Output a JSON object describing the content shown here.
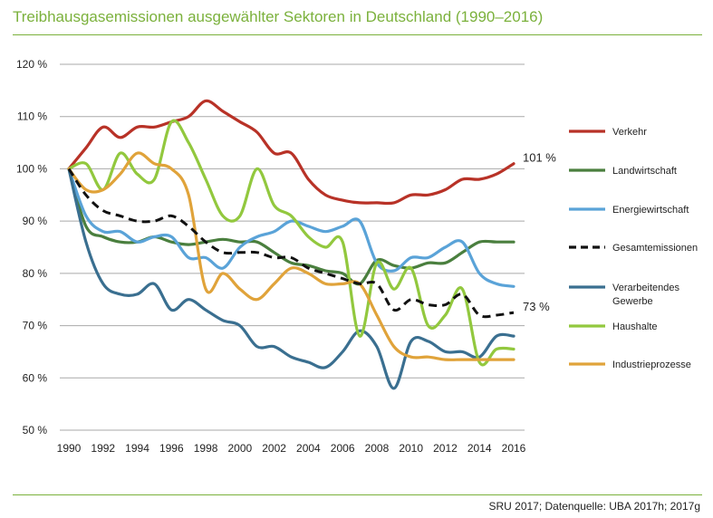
{
  "title": "Treibhausgasemissionen ausgewählter Sektoren in Deutschland (1990–2016)",
  "source": "SRU 2017; Datenquelle: UBA 2017h; 2017g",
  "chart_data": {
    "type": "line",
    "title": "Treibhausgasemissionen ausgewählter Sektoren in Deutschland (1990–2016)",
    "xlabel": "",
    "ylabel": "",
    "x": [
      1990,
      1991,
      1992,
      1993,
      1994,
      1995,
      1996,
      1997,
      1998,
      1999,
      2000,
      2001,
      2002,
      2003,
      2004,
      2005,
      2006,
      2007,
      2008,
      2009,
      2010,
      2011,
      2012,
      2013,
      2014,
      2015,
      2016
    ],
    "xticks": [
      "1990",
      "1992",
      "1994",
      "1996",
      "1998",
      "2000",
      "2002",
      "2004",
      "2006",
      "2008",
      "2010",
      "2012",
      "2014",
      "2016"
    ],
    "yticks": [
      "50 %",
      "60 %",
      "70 %",
      "80 %",
      "90 %",
      "100 %",
      "110 %",
      "120 %"
    ],
    "yticks_values": [
      50,
      60,
      70,
      80,
      90,
      100,
      110,
      120
    ],
    "ylim": [
      50,
      120
    ],
    "xlim": [
      1990,
      2016
    ],
    "grid": true,
    "legend_position": "right",
    "series": [
      {
        "name": "Verkehr",
        "color": "#b83227",
        "dashed": false,
        "values": [
          100,
          104,
          108,
          106,
          108,
          108,
          109,
          110,
          113,
          111,
          109,
          107,
          103,
          103,
          98,
          95,
          94,
          93.5,
          93.5,
          93.5,
          95,
          95,
          96,
          98,
          98,
          99,
          101
        ]
      },
      {
        "name": "Landwirtschaft",
        "color": "#4a7f3e",
        "dashed": false,
        "values": [
          100,
          89,
          87,
          86,
          86,
          87,
          86,
          85.5,
          86,
          86.5,
          86,
          86,
          84,
          82,
          81.5,
          80.5,
          80,
          78,
          82.5,
          81.5,
          81,
          82,
          82,
          84,
          86,
          86,
          86
        ]
      },
      {
        "name": "Energiewirtschaft",
        "color": "#5aa3d8",
        "dashed": false,
        "values": [
          100,
          91,
          88,
          88,
          86,
          87,
          87,
          83,
          83,
          81,
          85,
          87,
          88,
          90,
          89,
          88,
          89,
          90,
          82,
          80.5,
          83,
          83,
          85,
          86,
          80,
          78,
          77.5
        ]
      },
      {
        "name": "Gesamtemissionen",
        "color": "#111111",
        "dashed": true,
        "values": [
          100,
          95,
          92,
          91,
          90,
          90,
          91,
          89,
          86,
          84,
          84,
          84,
          83,
          83,
          81,
          80,
          79,
          78,
          78,
          73,
          75,
          74,
          74,
          76,
          72,
          72,
          72.5
        ]
      },
      {
        "name": "Verarbeitendes Gewerbe",
        "color": "#3a6f90",
        "dashed": false,
        "values": [
          100,
          86,
          78,
          76,
          76,
          78,
          73,
          75,
          73,
          71,
          70,
          66,
          66,
          64,
          63,
          62,
          65,
          69,
          66,
          58,
          67,
          67,
          65,
          65,
          64,
          68,
          68
        ]
      },
      {
        "name": "Haushalte",
        "color": "#92c83e",
        "dashed": false,
        "values": [
          100,
          101,
          96,
          103,
          99,
          98,
          109,
          105,
          98,
          91,
          91,
          100,
          93,
          91,
          87,
          85,
          86,
          68,
          82,
          77,
          81,
          70,
          72,
          77,
          63,
          65.5,
          65.5
        ]
      },
      {
        "name": "Industrieprozesse",
        "color": "#e0a33a",
        "dashed": false,
        "values": [
          100,
          96,
          96,
          99,
          103,
          101,
          100,
          95,
          77,
          80,
          77,
          75,
          78,
          81,
          80,
          78,
          78,
          78,
          72,
          66,
          64,
          64,
          63.5,
          63.5,
          63.5,
          63.5,
          63.5
        ]
      }
    ],
    "annotations": [
      {
        "series": "Verkehr",
        "year": 2016,
        "text": "101 %"
      },
      {
        "series": "Gesamtemissionen",
        "year": 2016,
        "text": "73 %"
      }
    ]
  }
}
